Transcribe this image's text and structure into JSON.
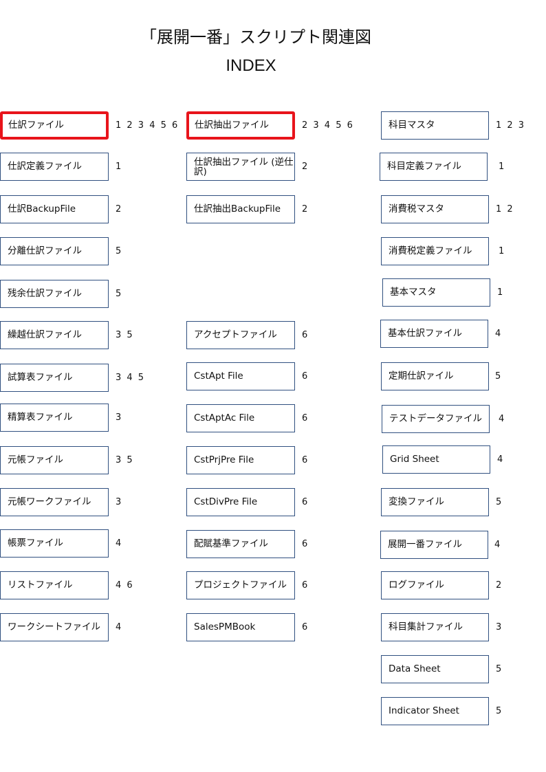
{
  "title": "「展開一番」スクリプト関連図",
  "subtitle": "INDEX",
  "columns": [
    {
      "items": [
        {
          "label": "仕訳ファイル",
          "refs": "1 2 3 4 5 6",
          "highlighted": true
        },
        {
          "label": "仕訳定義ファイル",
          "refs": "1"
        },
        {
          "label": "仕訳BackupFile",
          "refs": "2"
        },
        {
          "label": "分離仕訳ファイル",
          "refs": "5"
        },
        {
          "label": "残余仕訳ファイル",
          "refs": "5"
        },
        {
          "label": "繰越仕訳ファイル",
          "refs": "3 5"
        },
        {
          "label": "試算表ファイル",
          "refs": "3 4 5"
        },
        {
          "label": "精算表ファイル",
          "refs": "3"
        },
        {
          "label": "元帳ファイル",
          "refs": "3 5"
        },
        {
          "label": "元帳ワークファイル",
          "refs": "3"
        },
        {
          "label": "帳票ファイル",
          "refs": "4"
        },
        {
          "label": "リストファイル",
          "refs": "4 6"
        },
        {
          "label": "ワークシートファイル",
          "refs": "4"
        }
      ]
    },
    {
      "items": [
        {
          "label": "仕訳抽出ファイル",
          "refs": "2 3 4 5 6",
          "highlighted": true
        },
        {
          "label": "仕訳抽出ファイル (逆仕訳)",
          "refs": "2"
        },
        {
          "label": "仕訳抽出BackupFile",
          "refs": "2"
        },
        {
          "label": "アクセプトファイル",
          "refs": "6"
        },
        {
          "label": "CstApt File",
          "refs": "6"
        },
        {
          "label": "CstAptAc File",
          "refs": "6"
        },
        {
          "label": "CstPrjPre File",
          "refs": "6"
        },
        {
          "label": "CstDivPre File",
          "refs": "6"
        },
        {
          "label": "配賦基準ファイル",
          "refs": "6"
        },
        {
          "label": "プロジェクトファイル",
          "refs": "6"
        },
        {
          "label": "SalesPMBook",
          "refs": "6"
        }
      ]
    },
    {
      "items": [
        {
          "label": "科目マスタ",
          "refs": "1 2 3"
        },
        {
          "label": "科目定義ファイル",
          "refs": "1"
        },
        {
          "label": "消費税マスタ",
          "refs": "1 2"
        },
        {
          "label": "消費税定義ファイル",
          "refs": "1"
        },
        {
          "label": "基本マスタ",
          "refs": "1"
        },
        {
          "label": "基本仕訳ファイル",
          "refs": "4"
        },
        {
          "label": "定期仕訳ァイル",
          "refs": "5"
        },
        {
          "label": "テストデータファイル",
          "refs": "4"
        },
        {
          "label": "Grid Sheet",
          "refs": "4"
        },
        {
          "label": "変換ファイル",
          "refs": "5"
        },
        {
          "label": "展開一番ファイル",
          "refs": "4"
        },
        {
          "label": "ログファイル",
          "refs": "2"
        },
        {
          "label": "科目集計ファイル",
          "refs": "3"
        },
        {
          "label": "Data Sheet",
          "refs": "5"
        },
        {
          "label": "Indicator Sheet",
          "refs": "5"
        }
      ]
    }
  ]
}
